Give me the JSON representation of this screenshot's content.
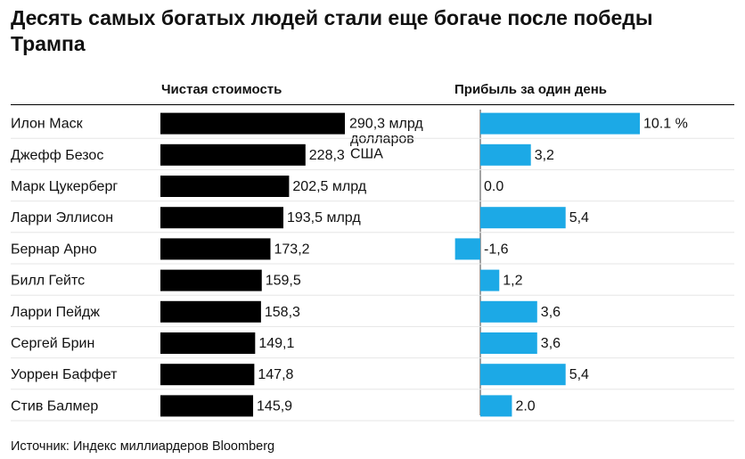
{
  "title": "Десять самых богатых людей стали еще богаче после победы Трампа",
  "source": "Источник: Индекс миллиардеров Bloomberg",
  "chart_data": {
    "type": "bar",
    "columns": {
      "net_worth": "Чистая стоимость",
      "daily_gain": "Прибыль за один день"
    },
    "categories": [
      "Илон Маск",
      "Джефф Безос",
      "Марк Цукерберг",
      "Ларри Эллисон",
      "Бернар Арно",
      "Билл Гейтс",
      "Ларри Пейдж",
      "Сергей Брин",
      "Уоррен Баффет",
      "Стив Балмер"
    ],
    "series": [
      {
        "name": "Чистая стоимость",
        "values": [
          290.3,
          228.3,
          202.5,
          193.5,
          173.2,
          159.5,
          158.3,
          149.1,
          147.8,
          145.9
        ],
        "labels": [
          "290,3 млрд долларов США",
          "228,3",
          "202,5 млрд",
          "193,5 млрд",
          "173,2",
          "159,5",
          "158,3",
          "149,1",
          "147,8",
          "145,9"
        ],
        "color": "#000000"
      },
      {
        "name": "Прибыль за один день",
        "values": [
          10.1,
          3.2,
          0.0,
          5.4,
          -1.6,
          1.2,
          3.6,
          3.6,
          5.4,
          2.0
        ],
        "labels": [
          "10.1 %",
          "3,2",
          "0.0",
          "5,4",
          "-1,6",
          "1,2",
          "3,6",
          "3,6",
          "5,4",
          "2.0"
        ],
        "color": "#1ca9e6"
      }
    ]
  }
}
